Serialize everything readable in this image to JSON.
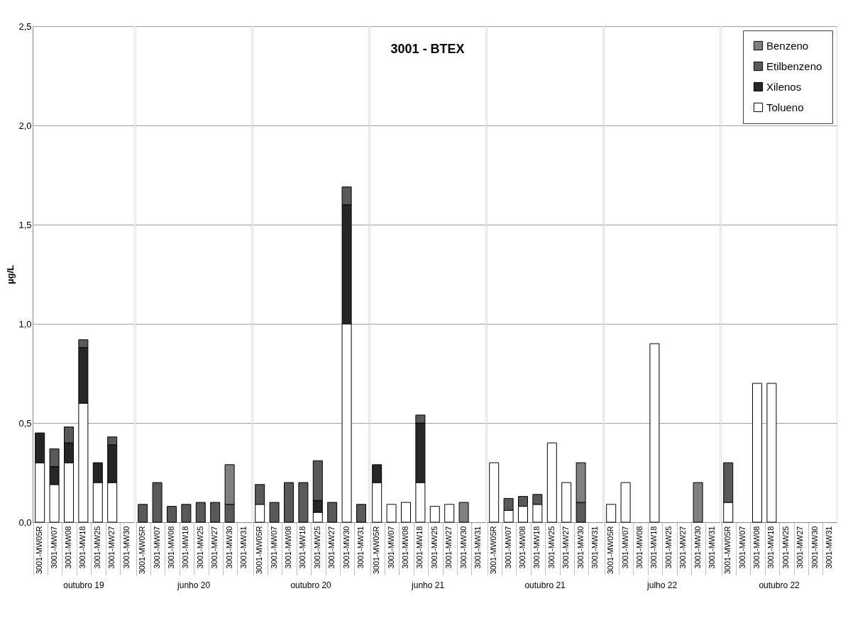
{
  "chart_data": [
    {
      "type": "bar",
      "ylabel": "µg/L",
      "xlabel": "outubro 19",
      "stacked": true,
      "grid": "y",
      "ylim": [
        0,
        2.5
      ],
      "yticks": [
        {
          "value": 0,
          "label": "0,0"
        },
        {
          "value": 0.5,
          "label": "0,5"
        },
        {
          "value": 1,
          "label": "1,0"
        },
        {
          "value": 1.5,
          "label": "1,5"
        },
        {
          "value": 2,
          "label": "2,0"
        },
        {
          "value": 2.5,
          "label": "2,5"
        }
      ],
      "categories": [
        "3001-MW05R",
        "3001-MW07",
        "3001-MW08",
        "3001-MW18",
        "3001-MW25",
        "3001-MW27",
        "3001-MW30"
      ],
      "series": [
        {
          "color": "#ffffff",
          "values": [
            0.3,
            0.19,
            0.3,
            0.6,
            0.2,
            0.2,
            null
          ]
        },
        {
          "color": "#262626",
          "values": [
            0.15,
            0.09,
            0.1,
            0.28,
            0.1,
            0.19,
            null
          ]
        },
        {
          "color": "#595959",
          "values": [
            null,
            0.09,
            0.08,
            0.04,
            null,
            0.04,
            null
          ]
        }
      ]
    },
    {
      "type": "bar",
      "xlabel": "junho 20",
      "stacked": true,
      "grid": "y",
      "tick_labels": "x",
      "ylim": [
        0,
        2.5
      ],
      "yticks": [
        {
          "value": 0,
          "label": null
        },
        {
          "value": 0.5,
          "label": null
        },
        {
          "value": 1,
          "label": null
        },
        {
          "value": 1.5,
          "label": null
        },
        {
          "value": 2,
          "label": null
        },
        {
          "value": 2.5,
          "label": null
        }
      ],
      "categories": [
        "3001-MW05R",
        "3001-MW07",
        "3001-MW08",
        "3001-MW18",
        "3001-MW25",
        "3001-MW27",
        "3001-MW30",
        "3001-MW31"
      ],
      "series": [
        {
          "color": "#595959",
          "values": [
            0.09,
            0.2,
            0.08,
            0.09,
            0.1,
            0.1,
            0.09,
            null
          ]
        },
        {
          "color": "#808080",
          "values": [
            null,
            null,
            null,
            null,
            null,
            null,
            0.2,
            null
          ]
        }
      ]
    },
    {
      "type": "bar",
      "xlabel": "outubro 20",
      "stacked": true,
      "grid": "y",
      "tick_labels": "x",
      "ylim": [
        0,
        2.5
      ],
      "yticks": [
        {
          "value": 0,
          "label": null
        },
        {
          "value": 0.5,
          "label": null
        },
        {
          "value": 1,
          "label": null
        },
        {
          "value": 1.5,
          "label": null
        },
        {
          "value": 2,
          "label": null
        },
        {
          "value": 2.5,
          "label": null
        }
      ],
      "categories": [
        "3001-MW05R",
        "3001-MW07",
        "3001-MW08",
        "3001-MW18",
        "3001-MW25",
        "3001-MW27",
        "3001-MW30",
        "3001-MW31"
      ],
      "series": [
        {
          "color": "#ffffff",
          "values": [
            0.09,
            null,
            null,
            null,
            0.05,
            null,
            1.0,
            null
          ]
        },
        {
          "color": "#262626",
          "values": [
            null,
            null,
            null,
            null,
            0.06,
            null,
            0.6,
            null
          ]
        },
        {
          "color": "#595959",
          "values": [
            0.1,
            0.1,
            0.2,
            0.2,
            0.2,
            0.1,
            0.09,
            0.09
          ]
        }
      ]
    },
    {
      "type": "bar",
      "title": "3001 - BTEX",
      "xlabel": "junho 21",
      "stacked": true,
      "grid": "y",
      "tick_labels": "x",
      "ylim": [
        0,
        2.5
      ],
      "yticks": [
        {
          "value": 0,
          "label": null
        },
        {
          "value": 0.5,
          "label": null
        },
        {
          "value": 1,
          "label": null
        },
        {
          "value": 1.5,
          "label": null
        },
        {
          "value": 2,
          "label": null
        },
        {
          "value": 2.5,
          "label": null
        }
      ],
      "categories": [
        "3001-MW05R",
        "3001-MW07",
        "3001-MW08",
        "3001-MW18",
        "3001-MW25",
        "3001-MW27",
        "3001-MW30",
        "3001-MW31"
      ],
      "series": [
        {
          "color": "#ffffff",
          "values": [
            0.2,
            0.09,
            0.1,
            0.2,
            0.08,
            0.09,
            null,
            null
          ]
        },
        {
          "color": "#262626",
          "values": [
            0.09,
            null,
            null,
            0.3,
            null,
            null,
            null,
            null
          ]
        },
        {
          "color": "#595959",
          "values": [
            null,
            null,
            null,
            0.04,
            null,
            null,
            null,
            null
          ]
        },
        {
          "color": "#808080",
          "values": [
            null,
            null,
            null,
            null,
            null,
            null,
            0.1,
            null
          ]
        }
      ]
    },
    {
      "type": "bar",
      "xlabel": "outubro 21",
      "stacked": true,
      "grid": "y",
      "tick_labels": "x",
      "ylim": [
        0,
        2.5
      ],
      "yticks": [
        {
          "value": 0,
          "label": null
        },
        {
          "value": 0.5,
          "label": null
        },
        {
          "value": 1,
          "label": null
        },
        {
          "value": 1.5,
          "label": null
        },
        {
          "value": 2,
          "label": null
        },
        {
          "value": 2.5,
          "label": null
        }
      ],
      "categories": [
        "3001-MW05R",
        "3001-MW07",
        "3001-MW08",
        "3001-MW18",
        "3001-MW25",
        "3001-MW27",
        "3001-MW30",
        "3001-MW31"
      ],
      "series": [
        {
          "color": "#ffffff",
          "values": [
            0.3,
            0.06,
            0.08,
            0.09,
            0.4,
            0.2,
            null,
            null
          ]
        },
        {
          "color": "#595959",
          "values": [
            null,
            0.06,
            0.05,
            0.05,
            null,
            null,
            0.1,
            null
          ]
        },
        {
          "color": "#808080",
          "values": [
            null,
            null,
            null,
            null,
            null,
            null,
            0.2,
            null
          ]
        }
      ]
    },
    {
      "type": "bar",
      "xlabel": "julho 22",
      "stacked": true,
      "grid": "y",
      "tick_labels": "x",
      "ylim": [
        0,
        2.5
      ],
      "yticks": [
        {
          "value": 0,
          "label": null
        },
        {
          "value": 0.5,
          "label": null
        },
        {
          "value": 1,
          "label": null
        },
        {
          "value": 1.5,
          "label": null
        },
        {
          "value": 2,
          "label": null
        },
        {
          "value": 2.5,
          "label": null
        }
      ],
      "categories": [
        "3001-MW05R",
        "3001-MW07",
        "3001-MW08",
        "3001-MW18",
        "3001-MW25",
        "3001-MW27",
        "3001-MW30",
        "3001-MW31"
      ],
      "series": [
        {
          "color": "#ffffff",
          "values": [
            0.09,
            0.2,
            null,
            0.9,
            null,
            null,
            null,
            null
          ]
        },
        {
          "color": "#808080",
          "values": [
            null,
            null,
            null,
            null,
            null,
            null,
            0.2,
            null
          ]
        }
      ]
    },
    {
      "type": "bar",
      "xlabel": "outubro 22",
      "stacked": true,
      "grid": "y",
      "tick_labels": "x",
      "legend": "top right",
      "ylim": [
        0,
        2.5
      ],
      "yticks": [
        {
          "value": 0,
          "label": null
        },
        {
          "value": 0.5,
          "label": null
        },
        {
          "value": 1,
          "label": null
        },
        {
          "value": 1.5,
          "label": null
        },
        {
          "value": 2,
          "label": null
        },
        {
          "value": 2.5,
          "label": null
        }
      ],
      "categories": [
        "3001-MW05R",
        "3001-MW07",
        "3001-MW08",
        "3001-MW18",
        "3001-MW25",
        "3001-MW27",
        "3001-MW30",
        "3001-MW31"
      ],
      "series": [
        {
          "name": "Tolueno",
          "color": "#ffffff",
          "values": [
            0.1,
            null,
            0.7,
            0.7,
            null,
            null,
            null,
            null
          ]
        },
        {
          "name": "Xilenos",
          "color": "#262626",
          "values": [
            null,
            null,
            null,
            null,
            null,
            null,
            null,
            null
          ]
        },
        {
          "name": "Etilbenzeno",
          "color": "#595959",
          "values": [
            0.2,
            null,
            null,
            null,
            null,
            null,
            null,
            null
          ]
        },
        {
          "name": "Benzeno",
          "color": "#808080",
          "values": [
            null,
            null,
            null,
            null,
            null,
            null,
            null,
            null
          ]
        }
      ]
    }
  ]
}
